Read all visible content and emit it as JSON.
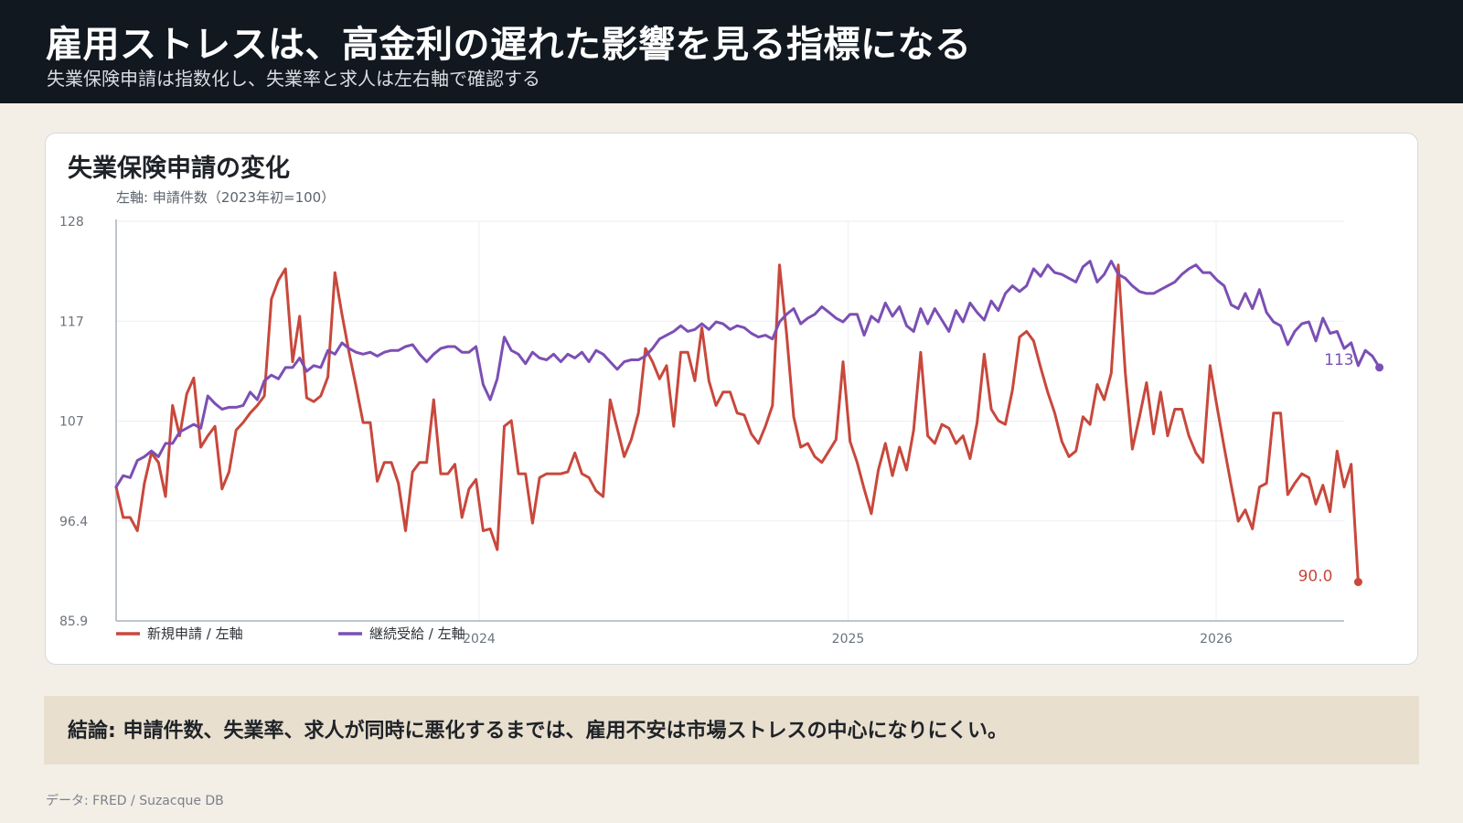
{
  "header": {
    "title": "雇用ストレスは、高金利の遅れた影響を見る指標になる",
    "subtitle": "失業保険申請は指数化し、失業率と求人は左右軸で確認する"
  },
  "card": {
    "title": "失業保険申請の変化",
    "axis_caption": "左軸: 申請件数（2023年初=100）"
  },
  "conclusion": "結論: 申請件数、失業率、求人が同時に悪化するまでは、雇用不安は市場ストレスの中心になりにくい。",
  "source": "データ: FRED / Suzacque DB",
  "chart_data": {
    "type": "line",
    "title": "失業保険申請の変化",
    "ylabel": "左軸: 申請件数（2023年初=100）",
    "ylim": [
      85.9,
      128
    ],
    "y_ticks": [
      "128",
      "117",
      "107",
      "96.4",
      "85.9"
    ],
    "y_tick_values": [
      128,
      117.475,
      106.95,
      96.425,
      85.9
    ],
    "xlim": [
      "2023-01-06",
      "2026-05-08"
    ],
    "x_ticks": [
      {
        "label": "2024",
        "date": "2024-01-01"
      },
      {
        "label": "2025",
        "date": "2025-01-01"
      },
      {
        "label": "2026",
        "date": "2026-01-01"
      }
    ],
    "grid": true,
    "legend_position": "bottom-left",
    "x_start": "2023-01-06",
    "x_frequency": "weekly",
    "series": [
      {
        "name": "新規申請 / 左軸",
        "color": "#c8483c",
        "end_label": "90.0",
        "values": [
          100.0,
          96.8,
          96.8,
          95.4,
          100.4,
          103.6,
          102.6,
          99.0,
          108.6,
          105.4,
          109.8,
          111.5,
          104.2,
          105.4,
          106.4,
          99.8,
          101.6,
          106.0,
          106.8,
          107.8,
          108.6,
          109.6,
          119.8,
          121.8,
          123.0,
          113.2,
          118.0,
          109.4,
          109.0,
          109.6,
          111.6,
          122.6,
          118.2,
          114.2,
          110.6,
          106.8,
          106.8,
          100.6,
          102.6,
          102.6,
          100.4,
          95.4,
          101.6,
          102.6,
          102.6,
          109.2,
          101.4,
          101.4,
          102.4,
          96.8,
          99.8,
          100.8,
          95.4,
          95.6,
          93.4,
          106.4,
          107.0,
          101.4,
          101.4,
          96.2,
          101.0,
          101.4,
          101.4,
          101.4,
          101.6,
          103.6,
          101.4,
          101.0,
          99.6,
          99.0,
          109.2,
          106.2,
          103.2,
          105.0,
          107.8,
          114.6,
          113.2,
          111.4,
          112.8,
          106.4,
          114.2,
          114.2,
          111.2,
          116.8,
          111.2,
          108.6,
          110.0,
          110.0,
          107.8,
          107.6,
          105.6,
          104.6,
          106.4,
          108.6,
          123.4,
          116.2,
          107.4,
          104.2,
          104.6,
          103.2,
          102.6,
          103.8,
          105.0,
          113.2,
          104.8,
          102.6,
          99.8,
          97.2,
          101.8,
          104.6,
          101.2,
          104.2,
          101.8,
          106.0,
          114.2,
          105.4,
          104.6,
          106.6,
          106.2,
          104.6,
          105.4,
          103.0,
          106.8,
          114.0,
          108.2,
          107.0,
          106.6,
          110.2,
          115.8,
          116.4,
          115.4,
          112.6,
          110.0,
          107.8,
          104.8,
          103.2,
          103.8,
          107.4,
          106.6,
          110.8,
          109.2,
          112.0,
          123.4,
          112.0,
          104.0,
          107.4,
          111.0,
          105.6,
          110.0,
          105.4,
          108.2,
          108.2,
          105.4,
          103.6,
          102.6,
          112.8,
          108.4,
          104.2,
          100.2,
          96.4,
          97.6,
          95.6,
          100.0,
          100.4,
          107.8,
          107.8,
          99.2,
          100.4,
          101.4,
          101.0,
          98.2,
          100.2,
          97.4,
          103.8,
          100.0,
          102.4,
          90.0
        ]
      },
      {
        "name": "継続受給 / 左軸",
        "color": "#7b4fb4",
        "end_label": "113",
        "values": [
          100.0,
          101.2,
          101.0,
          102.8,
          103.2,
          103.8,
          103.2,
          104.6,
          104.6,
          105.8,
          106.2,
          106.6,
          106.2,
          109.6,
          108.8,
          108.2,
          108.4,
          108.4,
          108.6,
          110.0,
          109.2,
          111.2,
          111.8,
          111.4,
          112.6,
          112.6,
          113.6,
          112.2,
          112.8,
          112.6,
          114.4,
          114.0,
          115.2,
          114.6,
          114.2,
          114.0,
          114.2,
          113.8,
          114.2,
          114.4,
          114.4,
          114.8,
          115.0,
          114.0,
          113.2,
          114.0,
          114.6,
          114.8,
          114.8,
          114.2,
          114.2,
          114.8,
          110.8,
          109.2,
          111.4,
          115.8,
          114.4,
          114.0,
          113.0,
          114.2,
          113.6,
          113.4,
          114.0,
          113.2,
          114.0,
          113.6,
          114.2,
          113.2,
          114.4,
          114.0,
          113.2,
          112.4,
          113.2,
          113.4,
          113.4,
          113.8,
          114.6,
          115.6,
          116.0,
          116.4,
          117.0,
          116.4,
          116.6,
          117.2,
          116.6,
          117.4,
          117.2,
          116.6,
          117.0,
          116.8,
          116.2,
          115.8,
          116.0,
          115.6,
          117.4,
          118.2,
          118.8,
          117.2,
          117.8,
          118.2,
          119.0,
          118.4,
          117.8,
          117.4,
          118.2,
          118.2,
          116.0,
          118.0,
          117.4,
          119.4,
          118.0,
          119.0,
          117.0,
          116.4,
          118.8,
          117.2,
          118.8,
          117.6,
          116.4,
          118.6,
          117.4,
          119.4,
          118.4,
          117.6,
          119.6,
          118.6,
          120.4,
          121.2,
          120.6,
          121.2,
          123.0,
          122.2,
          123.4,
          122.6,
          122.4,
          122.0,
          121.6,
          123.2,
          123.8,
          121.6,
          122.4,
          123.8,
          122.4,
          122.0,
          121.2,
          120.6,
          120.4,
          120.4,
          120.8,
          121.2,
          121.6,
          122.4,
          123.0,
          123.4,
          122.6,
          122.6,
          121.8,
          121.2,
          119.2,
          118.8,
          120.4,
          118.8,
          120.8,
          118.4,
          117.4,
          117.0,
          115.0,
          116.4,
          117.2,
          117.4,
          115.4,
          117.8,
          116.2,
          116.4,
          114.6,
          115.2,
          112.8,
          114.4,
          113.8,
          112.6
        ]
      }
    ]
  }
}
